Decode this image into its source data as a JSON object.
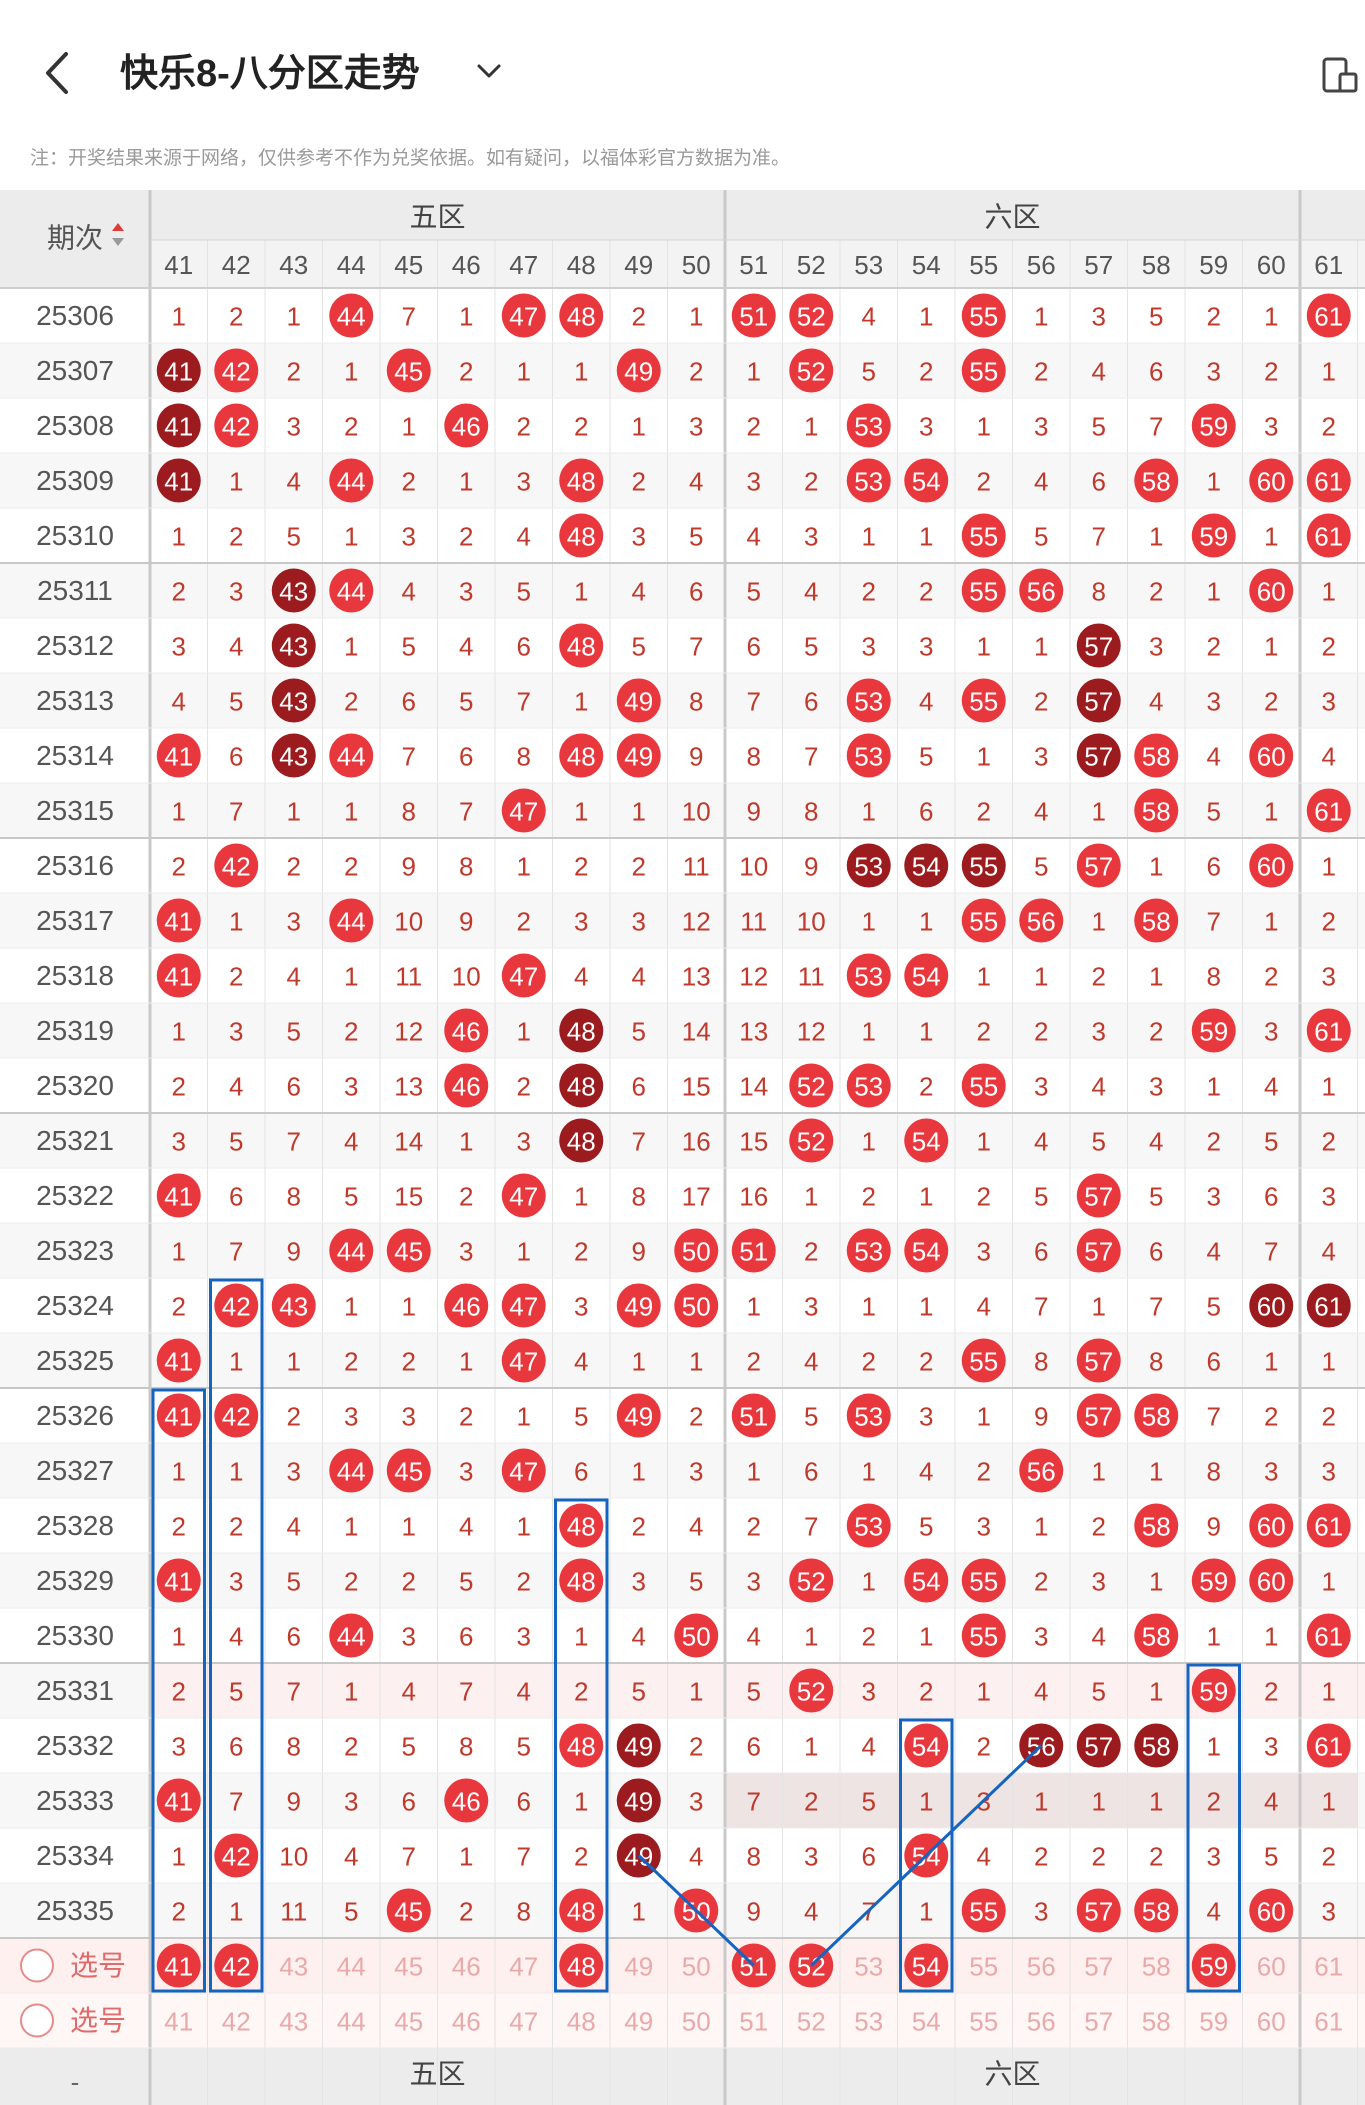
{
  "header": {
    "title": "快乐8-八分区走势",
    "note": "注：开奖结果来源于网络，仅供参考不作为兑奖依据。如有疑问，以福体彩官方数据为准。"
  },
  "icons": {
    "back": "chevron-left-icon",
    "title_dropdown": "chevron-down-icon",
    "device": "device-toggle-icon",
    "sort": "sort-arrows-icon"
  },
  "colors": {
    "ball_red": "#e8383d",
    "ball_dark": "#9b1b1e",
    "miss_text": "#c0392b",
    "header_bg": "#ececec",
    "row_even": "#f7f7f7",
    "selection_row": "#fff0f0",
    "highlight_box": "#1565c0"
  },
  "table": {
    "period_header": "期次",
    "zones": [
      {
        "name": "五区",
        "numbers": [
          41,
          42,
          43,
          44,
          45,
          46,
          47,
          48,
          49,
          50
        ]
      },
      {
        "name": "六区",
        "numbers": [
          51,
          52,
          53,
          54,
          55,
          56,
          57,
          58,
          59,
          60
        ]
      },
      {
        "name": "",
        "numbers": [
          61
        ]
      }
    ],
    "columns": [
      41,
      42,
      43,
      44,
      45,
      46,
      47,
      48,
      49,
      50,
      51,
      52,
      53,
      54,
      55,
      56,
      57,
      58,
      59,
      60,
      61
    ],
    "rows": [
      {
        "period": "25306",
        "cells": [
          1,
          2,
          1,
          44,
          7,
          1,
          47,
          48,
          2,
          1,
          51,
          52,
          4,
          1,
          55,
          1,
          3,
          5,
          2,
          1,
          61
        ]
      },
      {
        "period": "25307",
        "cells": [
          41,
          42,
          2,
          1,
          45,
          2,
          1,
          1,
          49,
          2,
          1,
          52,
          5,
          2,
          55,
          2,
          4,
          6,
          3,
          2,
          1
        ]
      },
      {
        "period": "25308",
        "cells": [
          41,
          42,
          3,
          2,
          1,
          46,
          2,
          2,
          1,
          3,
          2,
          1,
          53,
          3,
          1,
          3,
          5,
          7,
          59,
          3,
          2
        ]
      },
      {
        "period": "25309",
        "cells": [
          41,
          1,
          4,
          44,
          2,
          1,
          3,
          48,
          2,
          4,
          3,
          2,
          53,
          54,
          2,
          4,
          6,
          58,
          1,
          60,
          61
        ]
      },
      {
        "period": "25310",
        "cells": [
          1,
          2,
          5,
          1,
          3,
          2,
          4,
          48,
          3,
          5,
          4,
          3,
          1,
          1,
          55,
          5,
          7,
          1,
          59,
          1,
          61
        ]
      },
      {
        "period": "25311",
        "cells": [
          2,
          3,
          43,
          44,
          4,
          3,
          5,
          1,
          4,
          6,
          5,
          4,
          2,
          2,
          55,
          56,
          8,
          2,
          1,
          60,
          1
        ]
      },
      {
        "period": "25312",
        "cells": [
          3,
          4,
          43,
          1,
          5,
          4,
          6,
          48,
          5,
          7,
          6,
          5,
          3,
          3,
          1,
          1,
          57,
          3,
          2,
          1,
          2
        ]
      },
      {
        "period": "25313",
        "cells": [
          4,
          5,
          43,
          2,
          6,
          5,
          7,
          1,
          49,
          8,
          7,
          6,
          53,
          4,
          55,
          2,
          57,
          4,
          3,
          2,
          3
        ]
      },
      {
        "period": "25314",
        "cells": [
          41,
          6,
          43,
          44,
          7,
          6,
          8,
          48,
          49,
          9,
          8,
          7,
          53,
          5,
          1,
          3,
          57,
          58,
          4,
          60,
          4
        ]
      },
      {
        "period": "25315",
        "cells": [
          1,
          7,
          1,
          1,
          8,
          7,
          47,
          1,
          1,
          10,
          9,
          8,
          1,
          6,
          2,
          4,
          1,
          58,
          5,
          1,
          61
        ]
      },
      {
        "period": "25316",
        "cells": [
          2,
          42,
          2,
          2,
          9,
          8,
          1,
          2,
          2,
          11,
          10,
          9,
          53,
          54,
          55,
          5,
          57,
          1,
          6,
          60,
          1
        ]
      },
      {
        "period": "25317",
        "cells": [
          41,
          1,
          3,
          44,
          10,
          9,
          2,
          3,
          3,
          12,
          11,
          10,
          1,
          1,
          55,
          56,
          1,
          58,
          7,
          1,
          2
        ]
      },
      {
        "period": "25318",
        "cells": [
          41,
          2,
          4,
          1,
          11,
          10,
          47,
          4,
          4,
          13,
          12,
          11,
          53,
          54,
          1,
          1,
          2,
          1,
          8,
          2,
          3
        ]
      },
      {
        "period": "25319",
        "cells": [
          1,
          3,
          5,
          2,
          12,
          46,
          1,
          48,
          5,
          14,
          13,
          12,
          1,
          1,
          2,
          2,
          3,
          2,
          59,
          3,
          61
        ]
      },
      {
        "period": "25320",
        "cells": [
          2,
          4,
          6,
          3,
          13,
          46,
          2,
          48,
          6,
          15,
          14,
          52,
          53,
          2,
          55,
          3,
          4,
          3,
          1,
          4,
          1
        ]
      },
      {
        "period": "25321",
        "cells": [
          3,
          5,
          7,
          4,
          14,
          1,
          3,
          48,
          7,
          16,
          15,
          52,
          1,
          54,
          1,
          4,
          5,
          4,
          2,
          5,
          2
        ]
      },
      {
        "period": "25322",
        "cells": [
          41,
          6,
          8,
          5,
          15,
          2,
          47,
          1,
          8,
          17,
          16,
          1,
          2,
          1,
          2,
          5,
          57,
          5,
          3,
          6,
          3
        ]
      },
      {
        "period": "25323",
        "cells": [
          1,
          7,
          9,
          44,
          45,
          3,
          1,
          2,
          9,
          50,
          51,
          2,
          53,
          54,
          3,
          6,
          57,
          6,
          4,
          7,
          4
        ]
      },
      {
        "period": "25324",
        "cells": [
          2,
          42,
          43,
          1,
          1,
          46,
          47,
          3,
          49,
          50,
          1,
          3,
          1,
          1,
          4,
          7,
          1,
          7,
          5,
          60,
          61
        ]
      },
      {
        "period": "25325",
        "cells": [
          41,
          1,
          1,
          2,
          2,
          1,
          47,
          4,
          1,
          1,
          2,
          4,
          2,
          2,
          55,
          8,
          57,
          8,
          6,
          1,
          1
        ]
      },
      {
        "period": "25326",
        "cells": [
          41,
          42,
          2,
          3,
          3,
          2,
          1,
          5,
          49,
          2,
          51,
          5,
          53,
          3,
          1,
          9,
          57,
          58,
          7,
          2,
          2
        ]
      },
      {
        "period": "25327",
        "cells": [
          1,
          1,
          3,
          44,
          45,
          3,
          47,
          6,
          1,
          3,
          1,
          6,
          1,
          4,
          2,
          56,
          1,
          1,
          8,
          3,
          3
        ]
      },
      {
        "period": "25328",
        "cells": [
          2,
          2,
          4,
          1,
          1,
          4,
          1,
          48,
          2,
          4,
          2,
          7,
          53,
          5,
          3,
          1,
          2,
          58,
          9,
          60,
          61
        ]
      },
      {
        "period": "25329",
        "cells": [
          41,
          3,
          5,
          2,
          2,
          5,
          2,
          48,
          3,
          5,
          3,
          52,
          1,
          54,
          55,
          2,
          3,
          1,
          59,
          60,
          1
        ]
      },
      {
        "period": "25330",
        "cells": [
          1,
          4,
          6,
          44,
          3,
          6,
          3,
          1,
          4,
          50,
          4,
          1,
          2,
          1,
          55,
          3,
          4,
          58,
          1,
          1,
          61
        ]
      },
      {
        "period": "25331",
        "cells": [
          2,
          5,
          7,
          1,
          4,
          7,
          4,
          2,
          5,
          1,
          5,
          52,
          3,
          2,
          1,
          4,
          5,
          1,
          59,
          2,
          1
        ]
      },
      {
        "period": "25332",
        "cells": [
          3,
          6,
          8,
          2,
          5,
          8,
          5,
          48,
          49,
          2,
          6,
          1,
          4,
          54,
          2,
          56,
          57,
          58,
          1,
          3,
          61
        ]
      },
      {
        "period": "25333",
        "cells": [
          41,
          7,
          9,
          3,
          6,
          46,
          6,
          1,
          49,
          3,
          7,
          2,
          5,
          1,
          3,
          1,
          1,
          1,
          2,
          4,
          1
        ]
      },
      {
        "period": "25334",
        "cells": [
          1,
          42,
          10,
          4,
          7,
          1,
          7,
          2,
          49,
          4,
          8,
          3,
          6,
          54,
          4,
          2,
          2,
          2,
          3,
          5,
          2
        ]
      },
      {
        "period": "25335",
        "cells": [
          2,
          1,
          11,
          5,
          45,
          2,
          8,
          48,
          1,
          50,
          9,
          4,
          7,
          1,
          55,
          3,
          57,
          58,
          4,
          60,
          3
        ]
      }
    ],
    "dark_balls": {
      "25307": [
        41
      ],
      "25308": [
        41
      ],
      "25309": [
        41
      ],
      "25311": [
        43
      ],
      "25312": [
        43,
        57
      ],
      "25313": [
        43,
        57
      ],
      "25314": [
        43,
        57
      ],
      "25316": [
        53,
        54,
        55
      ],
      "25319": [
        48
      ],
      "25320": [
        48
      ],
      "25321": [
        48
      ],
      "25324": [
        60,
        61
      ],
      "25332": [
        49,
        56,
        57,
        58
      ],
      "25333": [
        49
      ],
      "25334": [
        49
      ]
    },
    "selection_rows": [
      {
        "label": "选号",
        "selected": [
          41,
          42,
          48,
          51,
          52,
          54,
          59
        ]
      },
      {
        "label": "选号",
        "selected": []
      }
    ],
    "footer_zones": [
      "五区",
      "六区"
    ]
  }
}
